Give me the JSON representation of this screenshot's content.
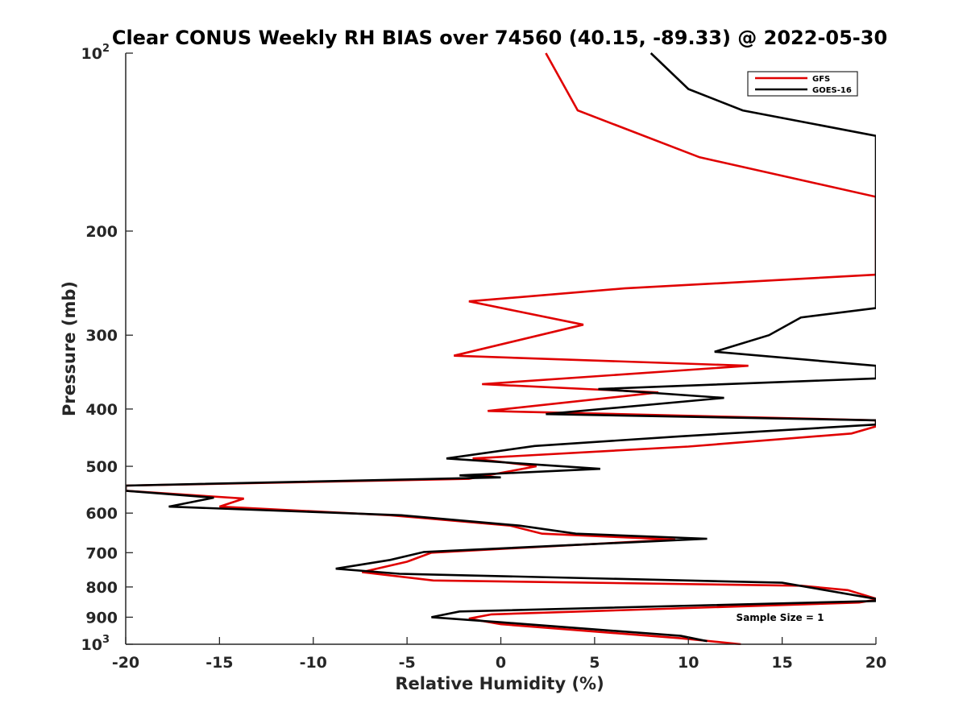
{
  "chart_data": {
    "type": "line",
    "title": "Clear CONUS Weekly RH BIAS over 74560 (40.15, -89.33) @ 2022-05-30",
    "xlabel": "Relative Humidity (%)",
    "ylabel": "Pressure (mb)",
    "xlim": [
      -20,
      20
    ],
    "ylim": [
      100,
      1000
    ],
    "y_scale": "log",
    "y_reversed": true,
    "grid": false,
    "legend_position": "top-right",
    "x_ticks": [
      "-20",
      "-15",
      "-10",
      "-5",
      "0",
      "5",
      "10",
      "15",
      "20"
    ],
    "y_ticks": [
      {
        "value": 100,
        "base": "10",
        "exp": "2"
      },
      {
        "value": 200,
        "label": "200"
      },
      {
        "value": 300,
        "label": "300"
      },
      {
        "value": 400,
        "label": "400"
      },
      {
        "value": 500,
        "label": "500"
      },
      {
        "value": 600,
        "label": "600"
      },
      {
        "value": 700,
        "label": "700"
      },
      {
        "value": 800,
        "label": "800"
      },
      {
        "value": 900,
        "label": "900"
      },
      {
        "value": 1000,
        "base": "10",
        "exp": "3"
      }
    ],
    "annotation": "Sample Size = 1",
    "series": [
      {
        "name": "GFS",
        "color": "#e00000",
        "points": [
          [
            2.4,
            100
          ],
          [
            4.1,
            125
          ],
          [
            10.6,
            150
          ],
          [
            20.0,
            175
          ],
          [
            20.0,
            225
          ],
          [
            20.0,
            237
          ],
          [
            6.6,
            250
          ],
          [
            -1.7,
            263
          ],
          [
            4.4,
            288
          ],
          [
            -2.5,
            325
          ],
          [
            13.2,
            338
          ],
          [
            -1.0,
            363
          ],
          [
            8.4,
            375
          ],
          [
            -0.7,
            403
          ],
          [
            20.0,
            418
          ],
          [
            20.0,
            428
          ],
          [
            18.7,
            440
          ],
          [
            10.0,
            463
          ],
          [
            -1.5,
            485
          ],
          [
            1.9,
            500
          ],
          [
            -1.7,
            525
          ],
          [
            -20.0,
            539
          ],
          [
            -20.0,
            550
          ],
          [
            -13.7,
            567
          ],
          [
            -15.0,
            585
          ],
          [
            -5.9,
            605
          ],
          [
            0.5,
            630
          ],
          [
            2.2,
            650
          ],
          [
            9.3,
            665
          ],
          [
            -3.7,
            700
          ],
          [
            -5.0,
            725
          ],
          [
            -7.4,
            755
          ],
          [
            -3.6,
            780
          ],
          [
            16.0,
            796
          ],
          [
            18.5,
            810
          ],
          [
            20.0,
            837
          ],
          [
            20.0,
            841
          ],
          [
            19.1,
            850
          ],
          [
            -0.5,
            890
          ],
          [
            -1.7,
            905
          ],
          [
            0.0,
            925
          ],
          [
            9.6,
            977
          ],
          [
            12.8,
            1000
          ]
        ]
      },
      {
        "name": "GOES-16",
        "color": "#000000",
        "points": [
          [
            8.0,
            100
          ],
          [
            10.0,
            115
          ],
          [
            12.9,
            125
          ],
          [
            20.0,
            138
          ],
          [
            20.0,
            270
          ],
          [
            16.0,
            280
          ],
          [
            14.3,
            300
          ],
          [
            11.4,
            320
          ],
          [
            20.0,
            338
          ],
          [
            20.0,
            355
          ],
          [
            5.2,
            370
          ],
          [
            11.9,
            383
          ],
          [
            2.4,
            408
          ],
          [
            20.0,
            418
          ],
          [
            20.0,
            425
          ],
          [
            9.5,
            445
          ],
          [
            1.8,
            462
          ],
          [
            -2.9,
            485
          ],
          [
            5.3,
            505
          ],
          [
            -2.2,
            518
          ],
          [
            0.0,
            522
          ],
          [
            -20.0,
            539
          ],
          [
            -20.0,
            550
          ],
          [
            -15.3,
            565
          ],
          [
            -17.7,
            585
          ],
          [
            -5.3,
            605
          ],
          [
            1.0,
            630
          ],
          [
            4.0,
            650
          ],
          [
            11.0,
            663
          ],
          [
            -4.1,
            698
          ],
          [
            -5.9,
            720
          ],
          [
            -8.8,
            745
          ],
          [
            -5.4,
            760
          ],
          [
            15.0,
            787
          ],
          [
            20.0,
            838
          ],
          [
            20.0,
            845
          ],
          [
            -2.2,
            880
          ],
          [
            -3.7,
            900
          ],
          [
            0.0,
            918
          ],
          [
            9.6,
            968
          ],
          [
            11.0,
            988
          ]
        ]
      }
    ]
  }
}
